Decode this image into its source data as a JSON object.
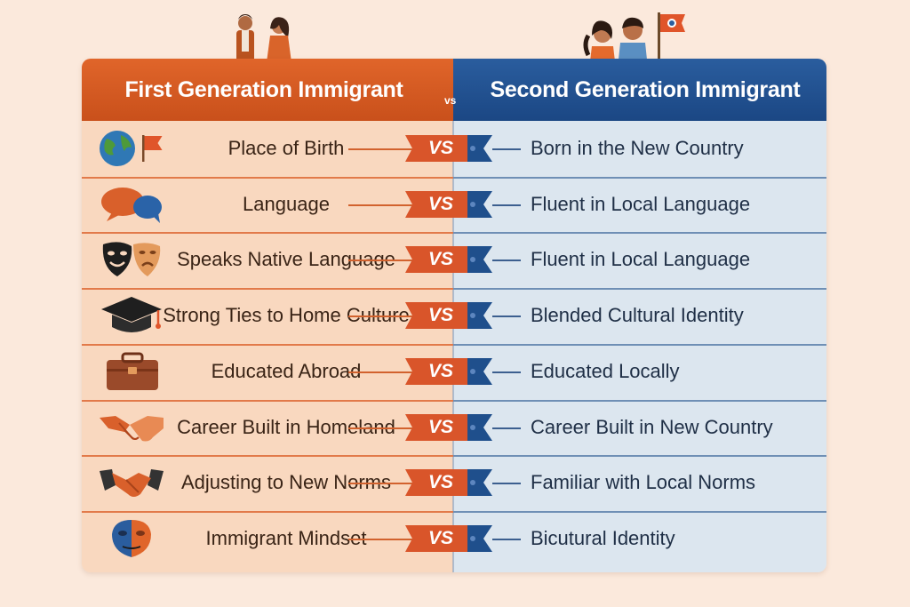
{
  "header": {
    "left_title": "First Generation Immigrant",
    "vs_label": "vs",
    "right_title": "Second Generation Immigrant"
  },
  "rows": [
    {
      "left": "Place of Birth",
      "vs": "VS",
      "right": "Born in the New Country",
      "icon": "globe-flag-icon"
    },
    {
      "left": "Language",
      "vs": "VS",
      "right": "Fluent in Local Language",
      "icon": "speech-bubbles-icon"
    },
    {
      "left": "Speaks Native Language",
      "vs": "VS",
      "right": "Fluent in Local Language",
      "icon": "theater-masks-icon"
    },
    {
      "left": "Strong Ties to Home Culture",
      "vs": "VS",
      "right": "Blended Cultural Identity",
      "icon": "graduation-cap-icon"
    },
    {
      "left": "Educated Abroad",
      "vs": "VS",
      "right": "Educated Locally",
      "icon": "briefcase-icon"
    },
    {
      "left": "Career Built in Homeland",
      "vs": "VS",
      "right": "Career Built in New Country",
      "icon": "handshake-icon"
    },
    {
      "left": "Adjusting to New Norms",
      "vs": "VS",
      "right": "Familiar with Local Norms",
      "icon": "handshake-dark-icon"
    },
    {
      "left": "Immigrant Mindset",
      "vs": "VS",
      "right": "Bicutural Identity",
      "icon": "split-face-mask-icon"
    }
  ],
  "colors": {
    "left_header": "#d4592a",
    "right_header": "#214f8c",
    "left_body": "#f9d8bf",
    "right_body": "#dce6ef",
    "page_bg": "#fbe9dc"
  }
}
